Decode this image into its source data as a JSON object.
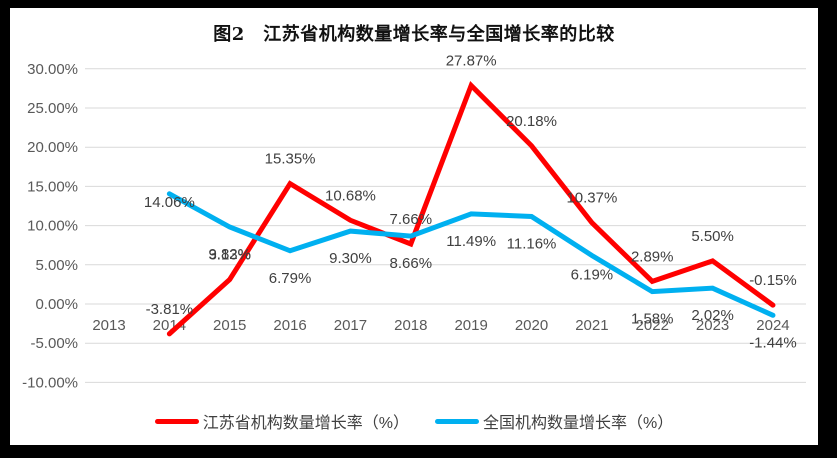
{
  "title": "图2　江苏省机构数量增长率与全国增长率的比较",
  "colors": {
    "jiangsu_line": "#FF0000",
    "national_line": "#00B0F0",
    "gridline": "#D9D9D9",
    "axis_text": "#595959",
    "data_label_text": "#404040",
    "frame": "#000000",
    "background": "#FFFFFF"
  },
  "chart_data": {
    "type": "line",
    "title": "图2　江苏省机构数量增长率与全国增长率的比较",
    "categories": [
      "2013",
      "2014",
      "2015",
      "2016",
      "2017",
      "2018",
      "2019",
      "2020",
      "2021",
      "2022",
      "2023",
      "2024"
    ],
    "xlabel": "",
    "ylabel": "",
    "ylim": [
      -10,
      30
    ],
    "grid": true,
    "legend_position": "bottom",
    "y_axis": {
      "values": [
        30,
        25,
        20,
        15,
        10,
        5,
        0,
        -5,
        -10
      ],
      "labels": [
        "30.00%",
        "25.00%",
        "20.00%",
        "15.00%",
        "10.00%",
        "5.00%",
        "0.00%",
        "-5.00%",
        "-10.00%"
      ]
    },
    "series": [
      {
        "name": "江苏省机构数量增长率（%）",
        "color": "#FF0000",
        "label_position": "above",
        "values": [
          null,
          -3.81,
          3.13,
          15.35,
          10.68,
          7.66,
          27.87,
          20.18,
          10.37,
          2.89,
          5.5,
          -0.15
        ],
        "labels": [
          "",
          "-3.81%",
          "3.13%",
          "15.35%",
          "10.68%",
          "7.66%",
          "27.87%",
          "20.18%",
          "10.37%",
          "2.89%",
          "5.50%",
          "-0.15%"
        ]
      },
      {
        "name": "全国机构数量增长率（%）",
        "color": "#00B0F0",
        "label_position": "below",
        "values": [
          null,
          14.06,
          9.82,
          6.79,
          9.3,
          8.66,
          11.49,
          11.16,
          6.19,
          1.58,
          2.02,
          -1.44
        ],
        "labels": [
          "",
          "14.06%",
          "9.82%",
          "6.79%",
          "9.30%",
          "8.66%",
          "11.49%",
          "11.16%",
          "6.19%",
          "1.58%",
          "2.02%",
          "-1.44%"
        ]
      }
    ]
  }
}
